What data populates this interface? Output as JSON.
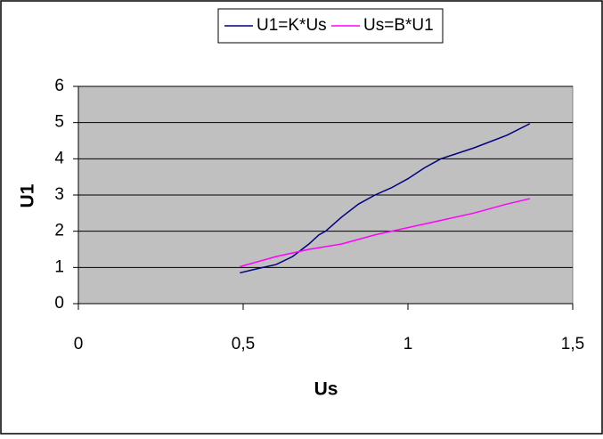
{
  "chart_data": {
    "type": "line",
    "xlabel": "Us",
    "ylabel": "U1",
    "xlim": [
      0,
      1.5
    ],
    "xticks": [
      0,
      {
        "value": 0.5,
        "label": "0,5"
      },
      1,
      {
        "value": 1.5,
        "label": "1,5"
      }
    ],
    "ylim": [
      0,
      6
    ],
    "yticks": [
      0,
      1,
      2,
      3,
      4,
      5,
      6
    ],
    "grid": true,
    "legend": "top",
    "series": [
      {
        "name": "U1=K*Us",
        "color": "#000080",
        "x": [
          0.49,
          0.55,
          0.6,
          0.65,
          0.7,
          0.73,
          0.75,
          0.8,
          0.85,
          0.9,
          0.95,
          1.0,
          1.05,
          1.1,
          1.2,
          1.3,
          1.37
        ],
        "values": [
          0.85,
          0.98,
          1.08,
          1.3,
          1.65,
          1.9,
          2.0,
          2.4,
          2.75,
          3.0,
          3.2,
          3.45,
          3.75,
          4.0,
          4.3,
          4.65,
          4.97
        ]
      },
      {
        "name": "Us=B*U1",
        "color": "#ff00ff",
        "x": [
          0.49,
          0.6,
          0.7,
          0.8,
          0.9,
          1.0,
          1.1,
          1.2,
          1.3,
          1.37
        ],
        "values": [
          1.02,
          1.3,
          1.5,
          1.65,
          1.9,
          2.1,
          2.3,
          2.5,
          2.75,
          2.9
        ]
      }
    ]
  }
}
